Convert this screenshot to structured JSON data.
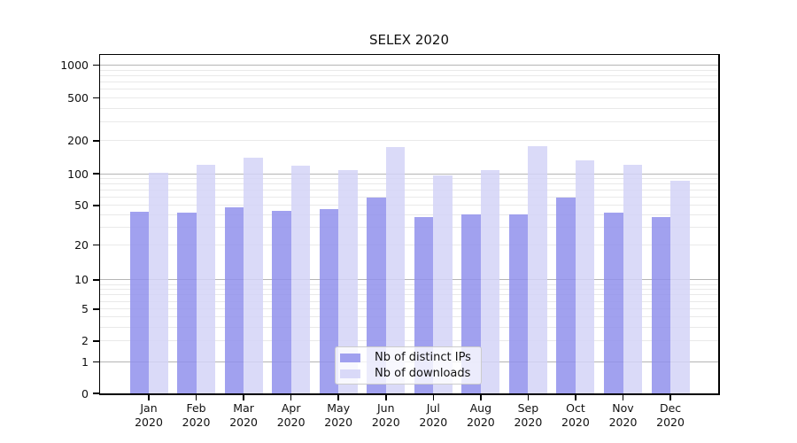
{
  "chart_data": {
    "type": "bar",
    "title": "SELEX 2020",
    "xlabel": "",
    "ylabel": "",
    "yscale": "symlog",
    "grid": true,
    "legend_position": "lower center",
    "categories": [
      "Jan 2020",
      "Feb 2020",
      "Mar 2020",
      "Apr 2020",
      "May 2020",
      "Jun 2020",
      "Jul 2020",
      "Aug 2020",
      "Sep 2020",
      "Oct 2020",
      "Nov 2020",
      "Dec 2020"
    ],
    "series": [
      {
        "name": "Nb of distinct IPs",
        "color": "#9191ec",
        "alpha": 0.85,
        "values": [
          43,
          42,
          48,
          44,
          46,
          59,
          38,
          41,
          41,
          59,
          42,
          38
        ]
      },
      {
        "name": "Nb of downloads",
        "color": "#d4d4f7",
        "alpha": 0.85,
        "values": [
          102,
          120,
          139,
          119,
          108,
          175,
          97,
          107,
          178,
          133,
          121,
          86
        ]
      }
    ],
    "yticks": [
      0,
      1,
      2,
      5,
      10,
      20,
      50,
      100,
      200,
      500,
      1000
    ],
    "ylim": [
      0,
      1240
    ],
    "gridlines": {
      "decade": [
        1,
        10,
        100,
        1000
      ],
      "light": [
        2,
        3,
        4,
        5,
        6,
        7,
        8,
        9,
        20,
        30,
        40,
        50,
        60,
        70,
        80,
        90,
        200,
        300,
        400,
        500,
        600,
        700,
        800,
        900
      ]
    },
    "colors": {
      "decade_grid": "#b5b5b5",
      "light_grid": "#e9e9e9",
      "spine": "#000000"
    }
  }
}
